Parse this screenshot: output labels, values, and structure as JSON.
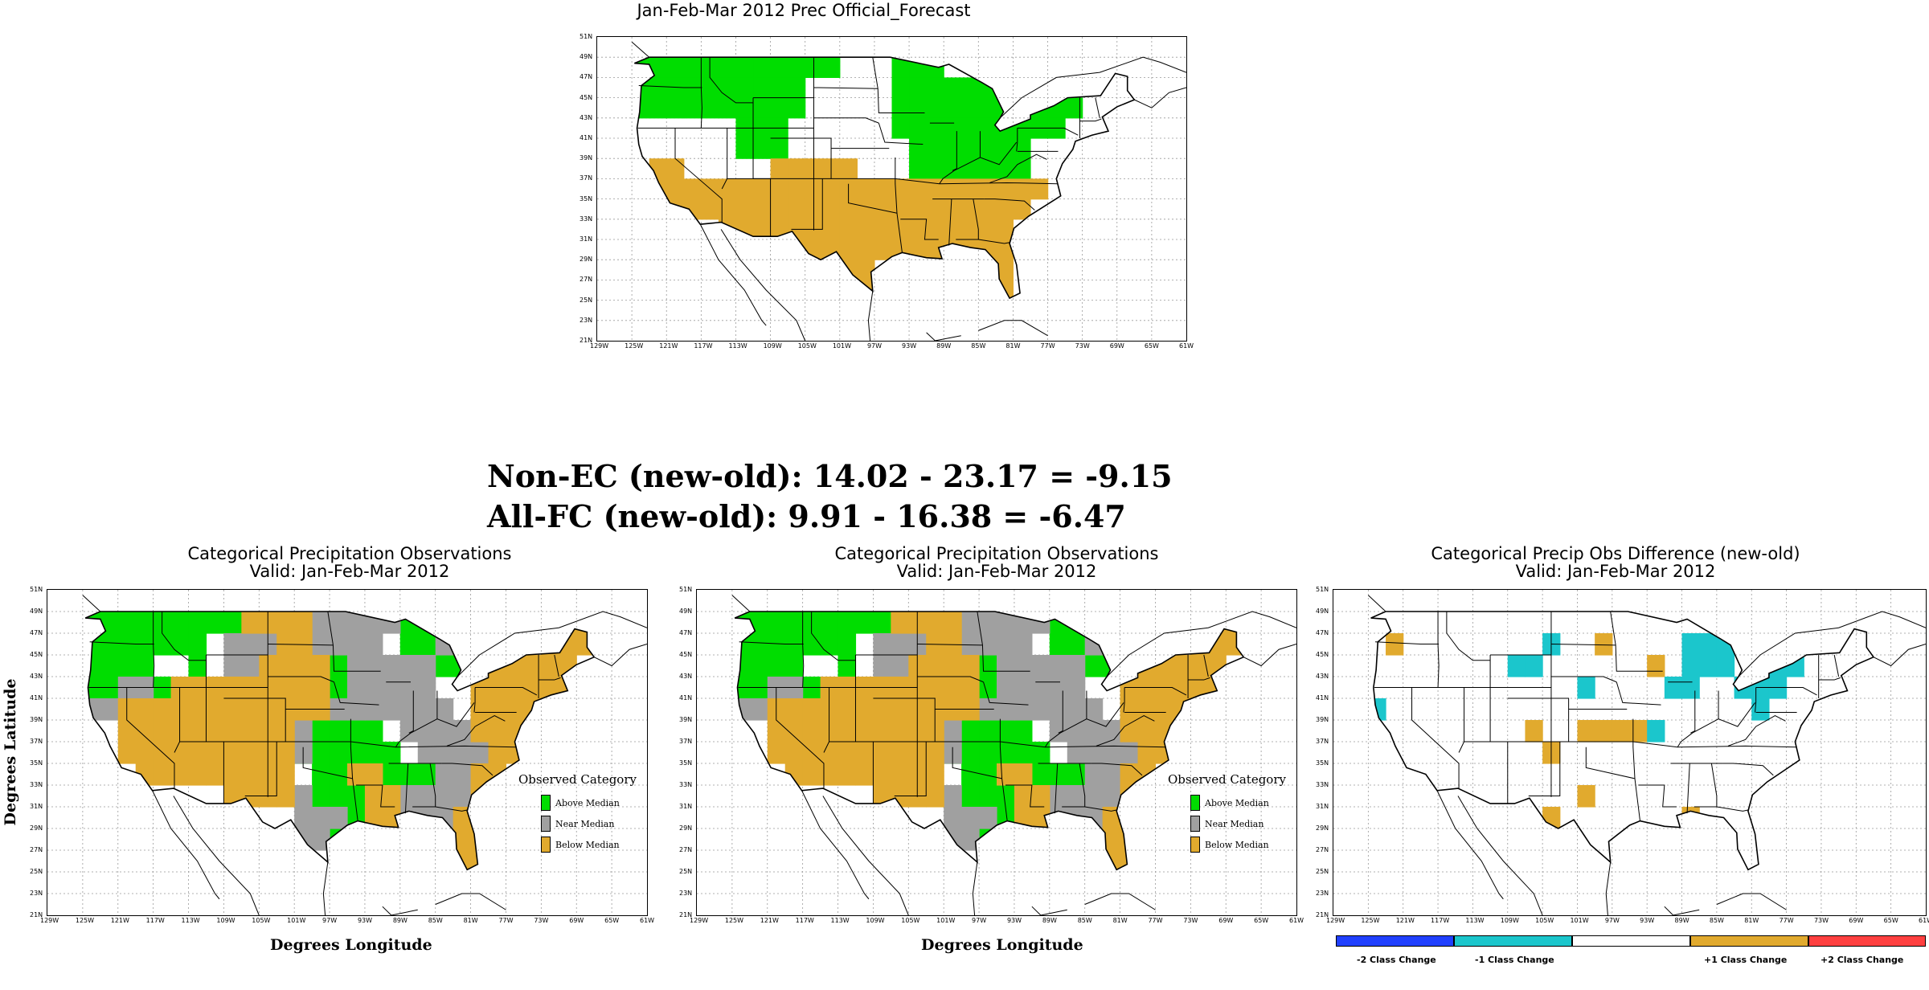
{
  "forecast_map": {
    "title": "Jan-Feb-Mar 2012 Prec Official_Forecast"
  },
  "stats": {
    "non_ec": "Non-EC (new-old): 14.02 - 23.17 = -9.15",
    "all_fc": "All-FC (new-old): 9.91 - 16.38 = -6.47"
  },
  "obs_map_left": {
    "title_line1": "Categorical Precipitation Observations",
    "title_line2": "Valid: Jan-Feb-Mar 2012",
    "ylabel": "Degrees Latitude",
    "xlabel": "Degrees Longitude"
  },
  "obs_map_middle": {
    "title_line1": "Categorical Precipitation Observations",
    "title_line2": "Valid: Jan-Feb-Mar 2012",
    "xlabel": "Degrees Longitude"
  },
  "diff_map": {
    "title_line1": "Categorical Precip Obs Difference (new-old)",
    "title_line2": "Valid: Jan-Feb-Mar 2012"
  },
  "legend": {
    "title": "Observed Category",
    "items": [
      {
        "label": "Above Median",
        "color": "#00dd00"
      },
      {
        "label": "Near Median",
        "color": "#a0a0a0"
      },
      {
        "label": "Below Median",
        "color": "#e1aa2e"
      }
    ]
  },
  "diff_legend": {
    "items": [
      {
        "label": "-2 Class Change",
        "color": "#2040ff"
      },
      {
        "label": "-1 Class Change",
        "color": "#1bc6cc"
      },
      {
        "label": "",
        "color": "#ffffff"
      },
      {
        "label": "+1 Class Change",
        "color": "#e1aa2e"
      },
      {
        "label": "+2 Class Change",
        "color": "#ff4040"
      }
    ]
  },
  "axes": {
    "lat_ticks": [
      "51N",
      "49N",
      "47N",
      "45N",
      "43N",
      "41N",
      "39N",
      "37N",
      "35N",
      "33N",
      "31N",
      "29N",
      "27N",
      "25N",
      "23N",
      "21N"
    ],
    "lon_ticks": [
      "129W",
      "125W",
      "121W",
      "117W",
      "113W",
      "109W",
      "105W",
      "101W",
      "97W",
      "93W",
      "89W",
      "85W",
      "81W",
      "77W",
      "73W",
      "69W",
      "65W",
      "61W"
    ]
  },
  "colors": {
    "above": "#00dd00",
    "near": "#a0a0a0",
    "below": "#e1aa2e",
    "minus1": "#1bc6cc"
  }
}
